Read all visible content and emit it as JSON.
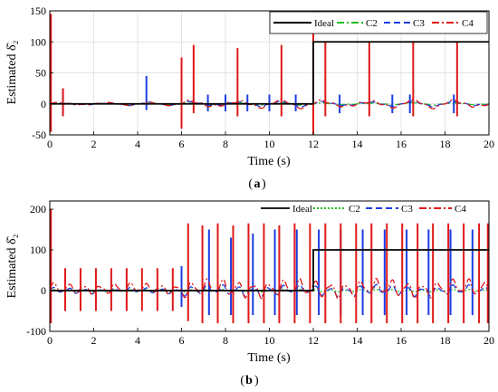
{
  "chart_data": [
    {
      "type": "line",
      "panel_label": "a",
      "xlabel": "Time (s)",
      "ylabel": "Estimated δ̂₂",
      "xlim": [
        0,
        20
      ],
      "ylim": [
        -50,
        150
      ],
      "x_ticks": [
        0,
        2,
        4,
        6,
        8,
        10,
        12,
        14,
        16,
        18,
        20
      ],
      "y_ticks": [
        -50,
        0,
        50,
        100,
        150
      ],
      "grid": true,
      "legend_position": "top-right",
      "series": [
        {
          "name": "Ideal",
          "color": "#000000",
          "dash": "solid",
          "points": [
            [
              0,
              0
            ],
            [
              12,
              0
            ],
            [
              12,
              100
            ],
            [
              20,
              100
            ]
          ]
        },
        {
          "name": "C2",
          "color": "#22c022",
          "dash": "dash-dot",
          "baseline": {
            "segments": [
              [
                0,
                6,
                0,
                2
              ],
              [
                6,
                20,
                0,
                2
              ]
            ],
            "period": 2
          },
          "spikes": []
        },
        {
          "name": "C3",
          "color": "#1c3de0",
          "dash": "dashed",
          "baseline": {
            "segments": [
              [
                0,
                6,
                0,
                3
              ],
              [
                6,
                20,
                0,
                5
              ]
            ],
            "period": 2
          },
          "spikes": [
            [
              0.6,
              25,
              -15
            ],
            [
              4.4,
              45,
              -10
            ],
            [
              6.0,
              40,
              -15
            ],
            [
              7.2,
              15,
              -12
            ],
            [
              8.0,
              15,
              -12
            ],
            [
              9.0,
              15,
              -12
            ],
            [
              10.0,
              15,
              -12
            ],
            [
              11.2,
              15,
              -12
            ],
            [
              12.0,
              100,
              -45
            ],
            [
              13.2,
              15,
              -15
            ],
            [
              15.6,
              15,
              -15
            ],
            [
              16.4,
              15,
              -15
            ],
            [
              18.4,
              15,
              -15
            ]
          ]
        },
        {
          "name": "C4",
          "color": "#e01818",
          "dash": "dash-dot",
          "baseline": {
            "segments": [
              [
                0,
                6,
                0,
                3
              ],
              [
                6,
                20,
                0,
                8
              ]
            ],
            "period": 2
          },
          "spikes": [
            [
              0.05,
              145,
              -45
            ],
            [
              0.6,
              25,
              -20
            ],
            [
              6.0,
              75,
              -40
            ],
            [
              6.55,
              95,
              -15
            ],
            [
              8.55,
              90,
              -20
            ],
            [
              10.55,
              95,
              -20
            ],
            [
              12.0,
              150,
              -50
            ],
            [
              12.55,
              100,
              -20
            ],
            [
              14.55,
              100,
              -20
            ],
            [
              16.55,
              100,
              -20
            ],
            [
              18.55,
              100,
              -20
            ]
          ]
        }
      ]
    },
    {
      "type": "line",
      "panel_label": "b",
      "xlabel": "Time (s)",
      "ylabel": "Estimated δ̂₂",
      "xlim": [
        0,
        20
      ],
      "ylim": [
        -100,
        220
      ],
      "x_ticks": [
        0,
        2,
        4,
        6,
        8,
        10,
        12,
        14,
        16,
        18,
        20
      ],
      "y_ticks": [
        -100,
        0,
        100,
        200
      ],
      "grid": false,
      "legend_position": "top",
      "series": [
        {
          "name": "Ideal",
          "color": "#000000",
          "dash": "solid",
          "points": [
            [
              0,
              0
            ],
            [
              12,
              0
            ],
            [
              12,
              100
            ],
            [
              20,
              100
            ]
          ]
        },
        {
          "name": "C2",
          "color": "#22c022",
          "dash": "dotted",
          "baseline": {
            "segments": [
              [
                0,
                6,
                0,
                3
              ],
              [
                6,
                20,
                0,
                3
              ]
            ],
            "period": 0.7
          },
          "spikes": []
        },
        {
          "name": "C3",
          "color": "#1c3de0",
          "dash": "dashed",
          "baseline": {
            "segments": [
              [
                0,
                6,
                0,
                8
              ],
              [
                6,
                20,
                0,
                15
              ]
            ],
            "period": 0.7
          },
          "spikes": [
            [
              6.0,
              60,
              -40
            ],
            [
              7.25,
              150,
              -60
            ],
            [
              8.25,
              130,
              -60
            ],
            [
              9.25,
              140,
              -60
            ],
            [
              10.25,
              150,
              -60
            ],
            [
              11.25,
              150,
              -60
            ],
            [
              12.25,
              150,
              -60
            ],
            [
              13.25,
              150,
              -60
            ],
            [
              14.25,
              150,
              -60
            ],
            [
              15.25,
              150,
              -60
            ],
            [
              16.25,
              150,
              -60
            ],
            [
              17.25,
              150,
              -60
            ],
            [
              18.25,
              150,
              -60
            ],
            [
              19.25,
              150,
              -60
            ]
          ]
        },
        {
          "name": "C4",
          "color": "#e01818",
          "dash": "dash-dot",
          "baseline": {
            "segments": [
              [
                0,
                6,
                5,
                15
              ],
              [
                6,
                20,
                5,
                25
              ]
            ],
            "period": 0.7
          },
          "spikes": [
            [
              0.05,
              200,
              -80
            ],
            [
              0.7,
              55,
              -50
            ],
            [
              1.4,
              55,
              -50
            ],
            [
              2.1,
              55,
              -50
            ],
            [
              2.8,
              55,
              -50
            ],
            [
              3.5,
              55,
              -50
            ],
            [
              4.2,
              55,
              -50
            ],
            [
              4.9,
              55,
              -50
            ],
            [
              5.6,
              55,
              -50
            ],
            [
              6.3,
              165,
              -75
            ],
            [
              6.95,
              160,
              -80
            ],
            [
              7.65,
              165,
              -80
            ],
            [
              8.35,
              160,
              -80
            ],
            [
              9.05,
              165,
              -80
            ],
            [
              9.75,
              165,
              -80
            ],
            [
              10.45,
              160,
              -80
            ],
            [
              11.15,
              165,
              -80
            ],
            [
              11.85,
              165,
              -80
            ],
            [
              12.55,
              165,
              -80
            ],
            [
              13.25,
              165,
              -80
            ],
            [
              13.95,
              165,
              -80
            ],
            [
              14.65,
              165,
              -80
            ],
            [
              15.35,
              165,
              -80
            ],
            [
              16.05,
              165,
              -80
            ],
            [
              16.75,
              165,
              -80
            ],
            [
              17.45,
              165,
              -80
            ],
            [
              18.15,
              165,
              -80
            ],
            [
              18.85,
              165,
              -80
            ],
            [
              19.55,
              165,
              -80
            ],
            [
              19.95,
              165,
              -80
            ]
          ]
        }
      ]
    }
  ]
}
